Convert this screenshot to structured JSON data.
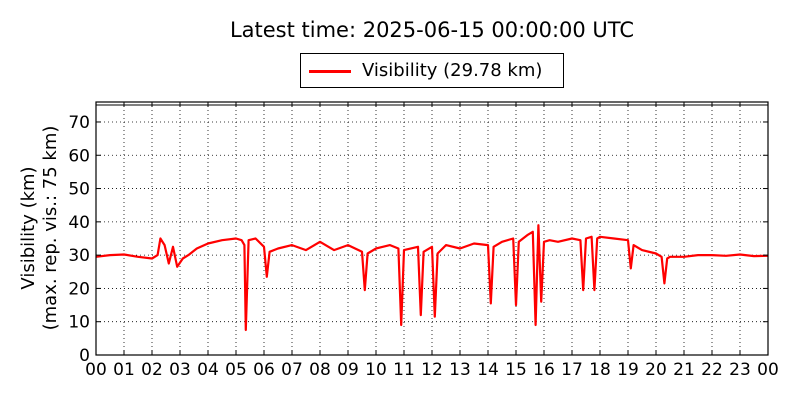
{
  "chart_data": {
    "type": "line",
    "title": "Latest time: 2025-06-15 00:00:00 UTC",
    "ylabel_line1": "Visibility (km)",
    "ylabel_line2": "(max. rep. vis.: 75 km)",
    "ylim": [
      0,
      76
    ],
    "yticks": [
      0,
      10,
      20,
      30,
      40,
      50,
      60,
      70
    ],
    "xlim": [
      0,
      24
    ],
    "xticks": [
      "00",
      "01",
      "02",
      "03",
      "04",
      "05",
      "06",
      "07",
      "08",
      "09",
      "10",
      "11",
      "12",
      "13",
      "14",
      "15",
      "16",
      "17",
      "18",
      "19",
      "20",
      "21",
      "22",
      "23",
      "00"
    ],
    "grid": true,
    "legend_position": "top-center",
    "series": [
      {
        "name": "Visibility (29.78 km)",
        "color": "#ff0000",
        "x": [
          0,
          0.5,
          1.0,
          1.5,
          2.0,
          2.2,
          2.3,
          2.45,
          2.6,
          2.75,
          2.9,
          3.1,
          3.3,
          3.6,
          4.0,
          4.5,
          5.0,
          5.2,
          5.3,
          5.35,
          5.45,
          5.7,
          6.0,
          6.1,
          6.2,
          6.5,
          7.0,
          7.5,
          8.0,
          8.5,
          9.0,
          9.5,
          9.6,
          9.7,
          10.0,
          10.5,
          10.8,
          10.9,
          11.0,
          11.5,
          11.6,
          11.7,
          12.0,
          12.1,
          12.2,
          12.5,
          13.0,
          13.5,
          14.0,
          14.1,
          14.2,
          14.5,
          14.9,
          15.0,
          15.1,
          15.4,
          15.6,
          15.7,
          15.8,
          15.9,
          16.0,
          16.2,
          16.5,
          17.0,
          17.3,
          17.4,
          17.5,
          17.7,
          17.8,
          17.9,
          18.0,
          18.5,
          19.0,
          19.1,
          19.2,
          19.5,
          20.0,
          20.2,
          20.3,
          20.4,
          20.5,
          21.0,
          21.5,
          22.0,
          22.5,
          23.0,
          23.5,
          24.0
        ],
        "values": [
          29.5,
          30.0,
          30.2,
          29.5,
          29.0,
          30.0,
          35.0,
          33.0,
          27.5,
          32.5,
          26.5,
          29.0,
          30.0,
          32.0,
          33.5,
          34.5,
          35.0,
          34.5,
          33.0,
          7.5,
          34.5,
          35.0,
          32.5,
          23.5,
          31.0,
          32.0,
          33.0,
          31.5,
          34.0,
          31.5,
          33.0,
          31.0,
          19.5,
          30.5,
          32.0,
          33.0,
          32.0,
          9.0,
          31.5,
          32.5,
          12.0,
          31.0,
          32.5,
          11.5,
          30.5,
          33.0,
          32.0,
          33.5,
          33.0,
          15.5,
          32.5,
          34.0,
          35.0,
          15.0,
          34.0,
          36.0,
          37.0,
          9.0,
          39.0,
          16.0,
          34.0,
          34.5,
          34.0,
          35.0,
          34.5,
          19.5,
          35.0,
          35.5,
          19.5,
          35.0,
          35.5,
          35.0,
          34.5,
          26.0,
          33.0,
          31.5,
          30.5,
          29.5,
          21.5,
          29.0,
          29.5,
          29.5,
          30.0,
          30.0,
          29.8,
          30.2,
          29.7,
          29.8
        ]
      }
    ]
  }
}
